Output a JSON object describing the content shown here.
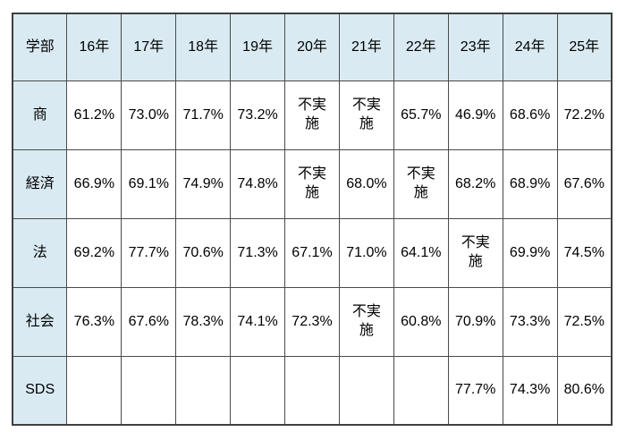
{
  "chart_data": {
    "type": "table",
    "title": "",
    "columns": [
      "学部",
      "16年",
      "17年",
      "18年",
      "19年",
      "20年",
      "21年",
      "22年",
      "23年",
      "24年",
      "25年"
    ],
    "rows": [
      {
        "label": "商",
        "values": [
          "61.2%",
          "73.0%",
          "71.7%",
          "73.2%",
          "不実施",
          "不実施",
          "65.7%",
          "46.9%",
          "68.6%",
          "72.2%"
        ]
      },
      {
        "label": "経済",
        "values": [
          "66.9%",
          "69.1%",
          "74.9%",
          "74.8%",
          "不実施",
          "68.0%",
          "不実施",
          "68.2%",
          "68.9%",
          "67.6%"
        ]
      },
      {
        "label": "法",
        "values": [
          "69.2%",
          "77.7%",
          "70.6%",
          "71.3%",
          "67.1%",
          "71.0%",
          "64.1%",
          "不実施",
          "69.9%",
          "74.5%"
        ]
      },
      {
        "label": "社会",
        "values": [
          "76.3%",
          "67.6%",
          "78.3%",
          "74.1%",
          "72.3%",
          "不実施",
          "60.8%",
          "70.9%",
          "73.3%",
          "72.5%"
        ]
      },
      {
        "label": "SDS",
        "values": [
          "",
          "",
          "",
          "",
          "",
          "",
          "",
          "77.7%",
          "74.3%",
          "80.6%"
        ]
      }
    ],
    "not_conducted_text": "不実施"
  },
  "colors": {
    "header_bg": "#d9eaf2",
    "cell_bg": "#ffffff",
    "border": "#4a4a4a",
    "text": "#000000",
    "not_conducted_red": "#e8251f"
  }
}
